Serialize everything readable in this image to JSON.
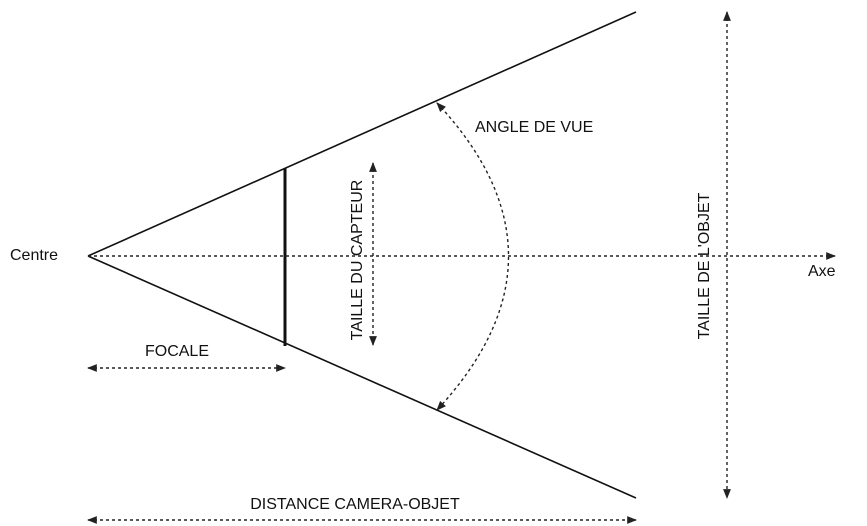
{
  "labels": {
    "centre": "Centre",
    "axis": "Axe",
    "focal": "FOCALE",
    "sensor_size": "TAILLE DU CAPTEUR",
    "view_angle": "ANGLE DE VUE",
    "object_size": "TAILLE DE L'OBJET",
    "distance": "DISTANCE CAMERA-OBJET"
  }
}
